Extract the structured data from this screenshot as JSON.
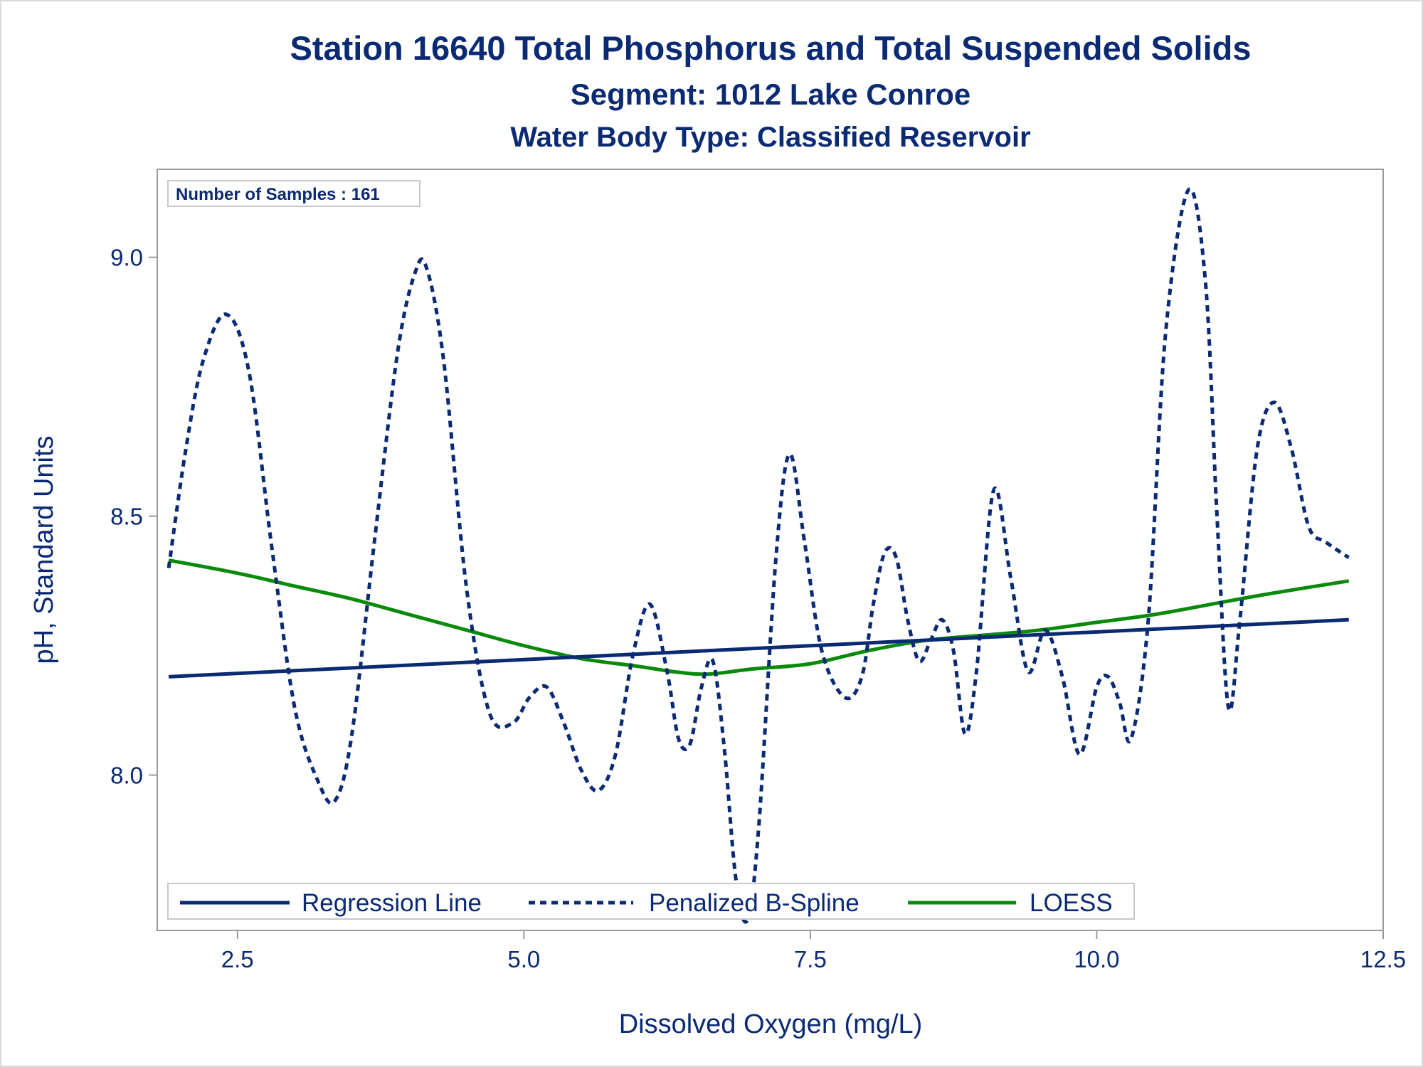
{
  "chart_data": {
    "type": "line",
    "title": "Station 16640  Total Phosphorus and Total Suspended Solids",
    "subtitle": "Segment: 1012  Lake Conroe",
    "subtitle2": "Water Body Type: Classified Reservoir",
    "xlabel": "Dissolved Oxygen (mg/L)",
    "ylabel": "pH, Standard Units",
    "xlim": [
      1.8,
      12.5
    ],
    "ylim": [
      7.7,
      9.17
    ],
    "xticks": [
      "2.5",
      "5.0",
      "7.5",
      "10.0",
      "12.5"
    ],
    "yticks": [
      "8.0",
      "8.5",
      "9.0"
    ],
    "grid": false,
    "legend_position": "bottom-inside",
    "annotation": "Number of Samples : 161",
    "colors": {
      "navy": "#0b2a74",
      "green": "#0a8a0a"
    },
    "series": [
      {
        "name": "Regression Line",
        "style": "solid",
        "color": "#0b2a74",
        "x": [
          1.9,
          12.2
        ],
        "y": [
          8.19,
          8.3
        ]
      },
      {
        "name": "Penalized B-Spline",
        "style": "dashed",
        "color": "#0b2a74",
        "x": [
          1.9,
          2.05,
          2.2,
          2.4,
          2.6,
          2.8,
          3.0,
          3.2,
          3.35,
          3.5,
          3.7,
          3.9,
          4.05,
          4.15,
          4.3,
          4.5,
          4.7,
          4.9,
          5.05,
          5.2,
          5.35,
          5.5,
          5.65,
          5.8,
          5.95,
          6.1,
          6.25,
          6.35,
          6.45,
          6.55,
          6.65,
          6.75,
          6.85,
          6.95,
          7.05,
          7.2,
          7.32,
          7.45,
          7.6,
          7.8,
          7.95,
          8.05,
          8.15,
          8.25,
          8.35,
          8.45,
          8.55,
          8.65,
          8.75,
          8.85,
          8.95,
          9.1,
          9.25,
          9.4,
          9.55,
          9.7,
          9.85,
          10.0,
          10.1,
          10.2,
          10.3,
          10.45,
          10.6,
          10.8,
          10.95,
          11.05,
          11.15,
          11.25,
          11.4,
          11.55,
          11.7,
          11.85,
          12.0,
          12.2
        ],
        "y": [
          8.4,
          8.63,
          8.8,
          8.89,
          8.78,
          8.44,
          8.13,
          7.99,
          7.95,
          8.08,
          8.46,
          8.82,
          8.97,
          8.98,
          8.8,
          8.36,
          8.12,
          8.1,
          8.15,
          8.17,
          8.1,
          8.01,
          7.97,
          8.04,
          8.23,
          8.33,
          8.2,
          8.07,
          8.06,
          8.17,
          8.22,
          8.05,
          7.8,
          7.72,
          7.9,
          8.42,
          8.62,
          8.45,
          8.24,
          8.15,
          8.19,
          8.33,
          8.43,
          8.42,
          8.3,
          8.22,
          8.26,
          8.3,
          8.24,
          8.08,
          8.2,
          8.55,
          8.38,
          8.2,
          8.28,
          8.19,
          8.04,
          8.17,
          8.19,
          8.14,
          8.07,
          8.3,
          8.85,
          9.13,
          8.95,
          8.5,
          8.13,
          8.3,
          8.63,
          8.72,
          8.63,
          8.48,
          8.45,
          8.42
        ]
      },
      {
        "name": "LOESS",
        "style": "solid",
        "color": "#0a8a0a",
        "x": [
          1.9,
          2.5,
          3.0,
          3.5,
          4.0,
          4.5,
          5.0,
          5.5,
          6.0,
          6.3,
          6.6,
          7.0,
          7.5,
          8.0,
          8.5,
          9.0,
          9.5,
          10.0,
          10.5,
          11.0,
          11.5,
          12.2
        ],
        "y": [
          8.415,
          8.39,
          8.365,
          8.34,
          8.31,
          8.28,
          8.25,
          8.225,
          8.21,
          8.2,
          8.195,
          8.205,
          8.215,
          8.24,
          8.26,
          8.27,
          8.28,
          8.295,
          8.31,
          8.33,
          8.35,
          8.375
        ]
      }
    ]
  }
}
